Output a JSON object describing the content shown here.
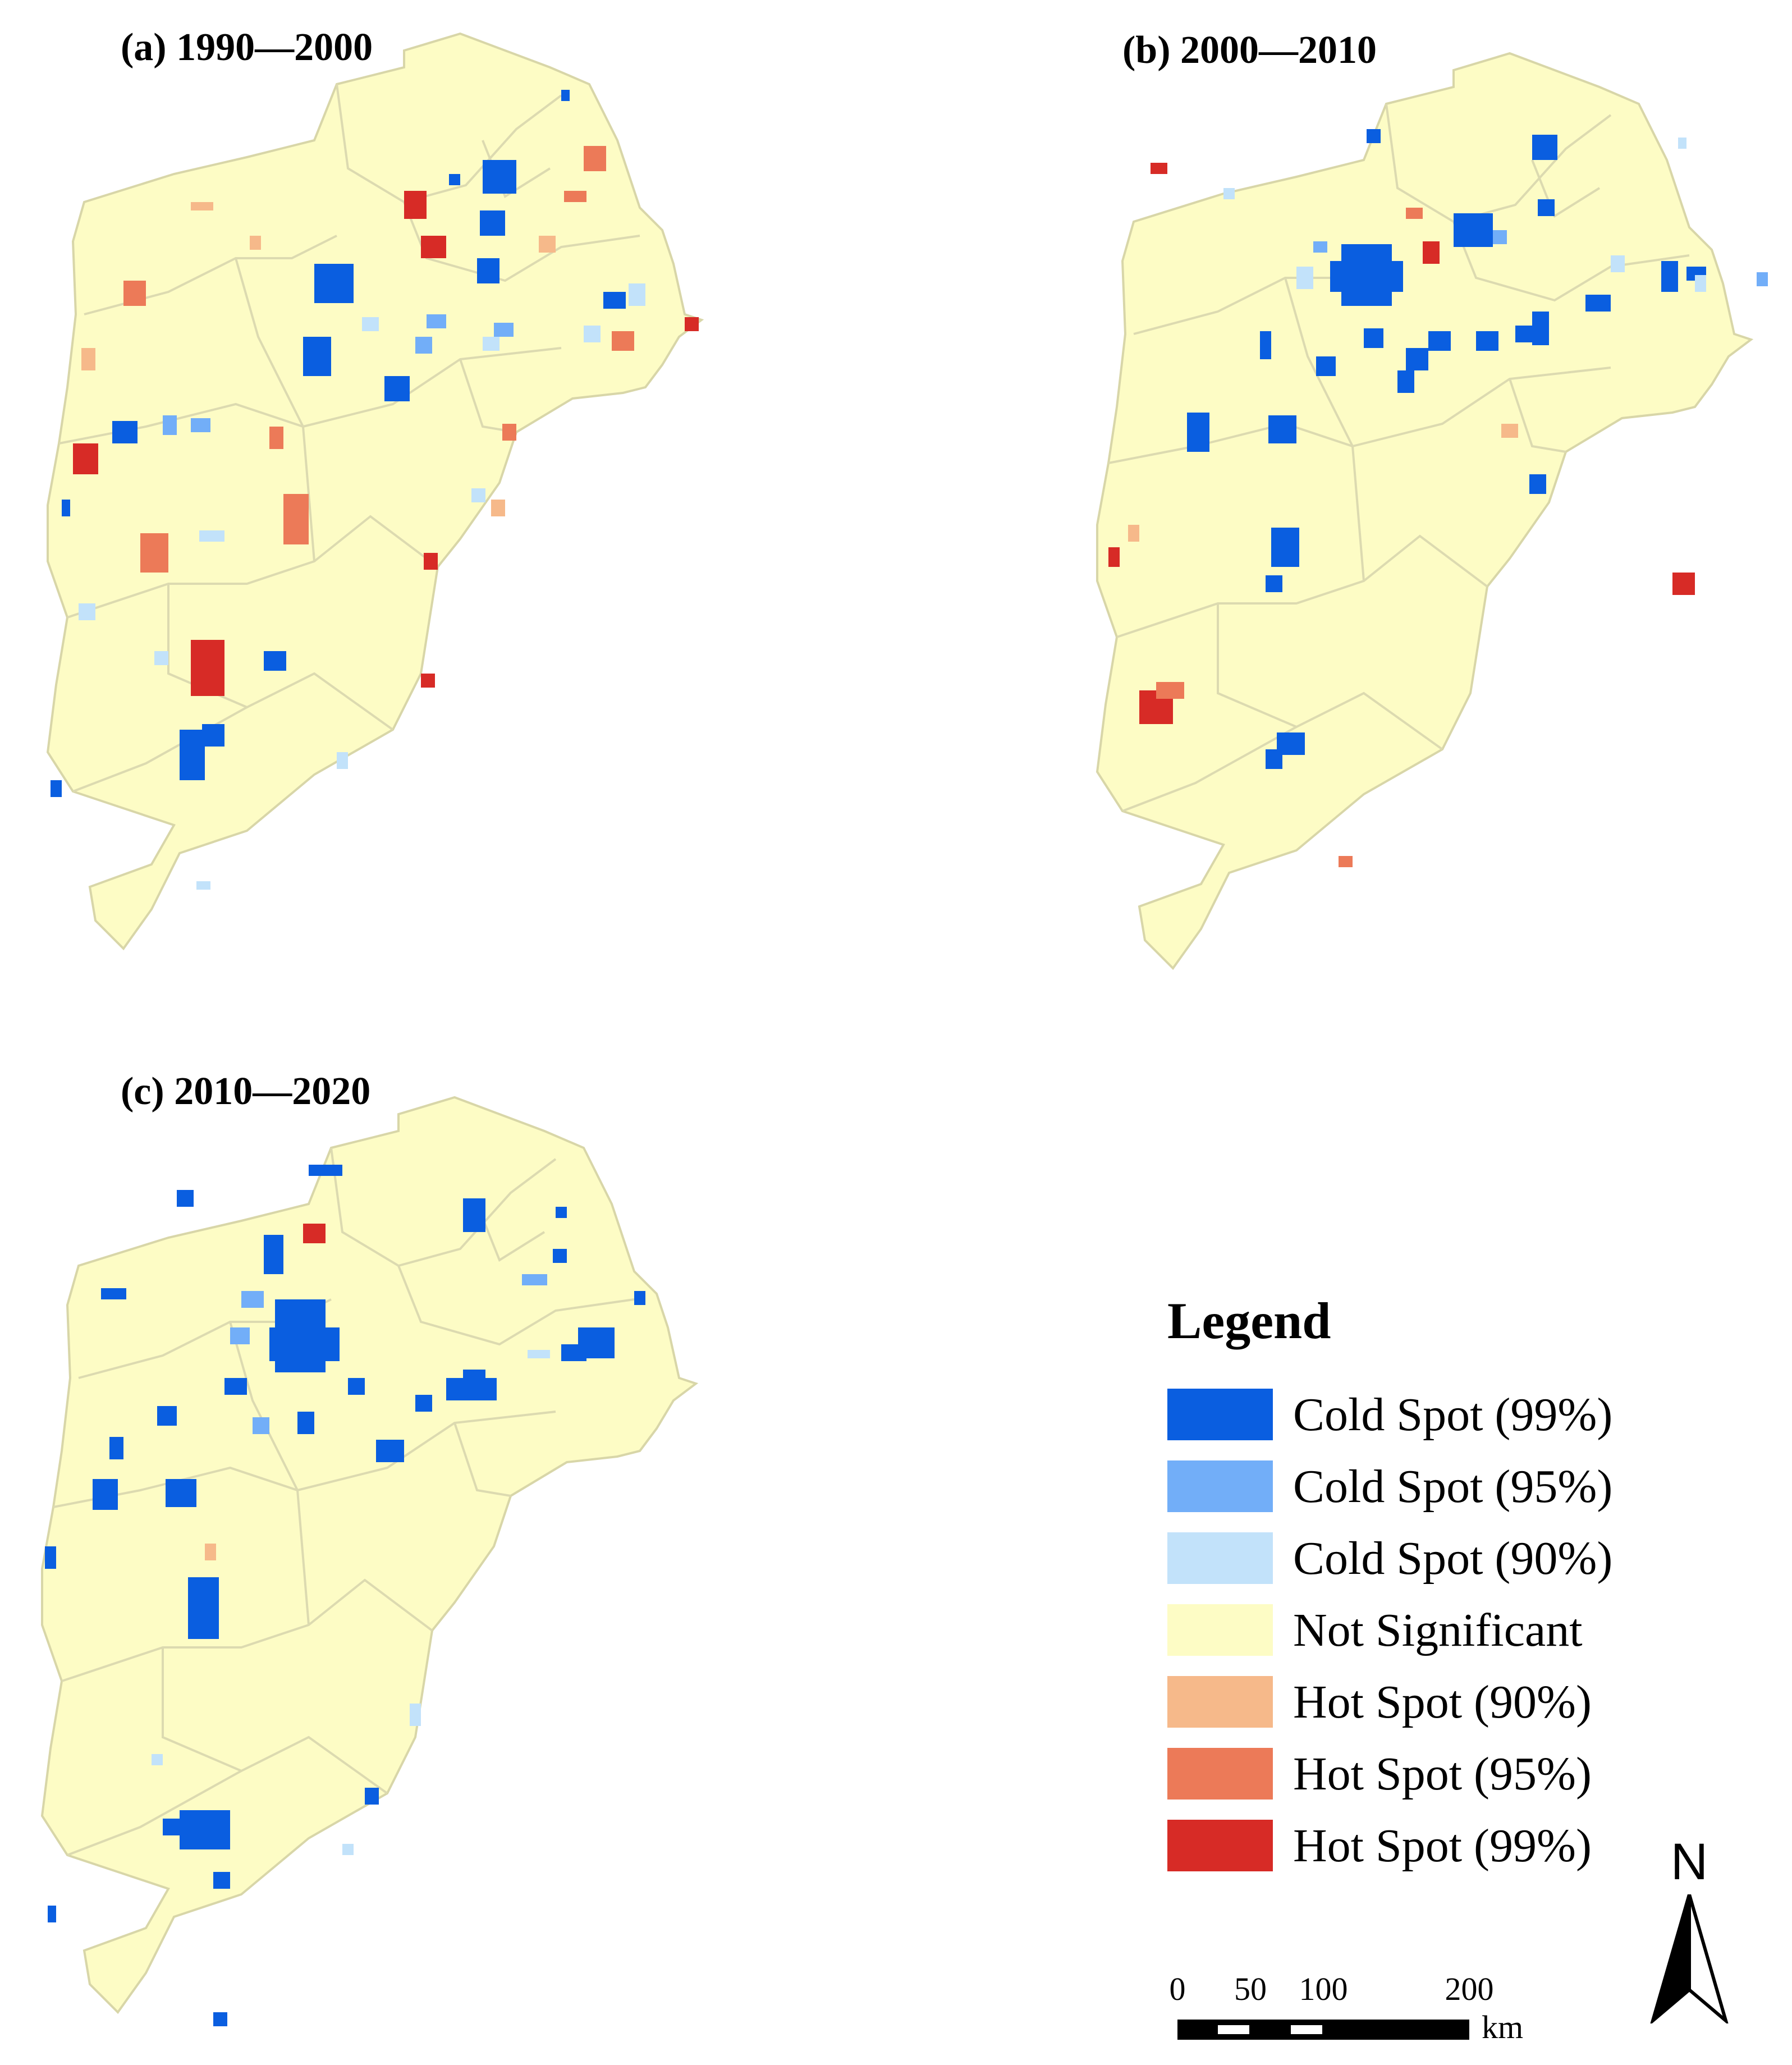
{
  "panels": [
    {
      "id": "a",
      "title": "(a) 1990—2000"
    },
    {
      "id": "b",
      "title": "(b) 2000—2010"
    },
    {
      "id": "c",
      "title": "(c) 2010—2020"
    }
  ],
  "legend": {
    "title": "Legend",
    "items": [
      {
        "label": "Cold Spot (99%)",
        "color": "#0a5ee0"
      },
      {
        "label": "Cold Spot (95%)",
        "color": "#72aef8"
      },
      {
        "label": "Cold Spot (90%)",
        "color": "#c2e2fa"
      },
      {
        "label": "Not Significant",
        "color": "#fdfcc5"
      },
      {
        "label": "Hot Spot (90%)",
        "color": "#f6b98a"
      },
      {
        "label": "Hot Spot (95%)",
        "color": "#ec7a58"
      },
      {
        "label": "Hot Spot (99%)",
        "color": "#d72b26"
      }
    ]
  },
  "scale_bar": {
    "ticks": [
      "0",
      "50",
      "100",
      "200"
    ],
    "unit": "km"
  },
  "north_arrow": {
    "label": "N"
  }
}
